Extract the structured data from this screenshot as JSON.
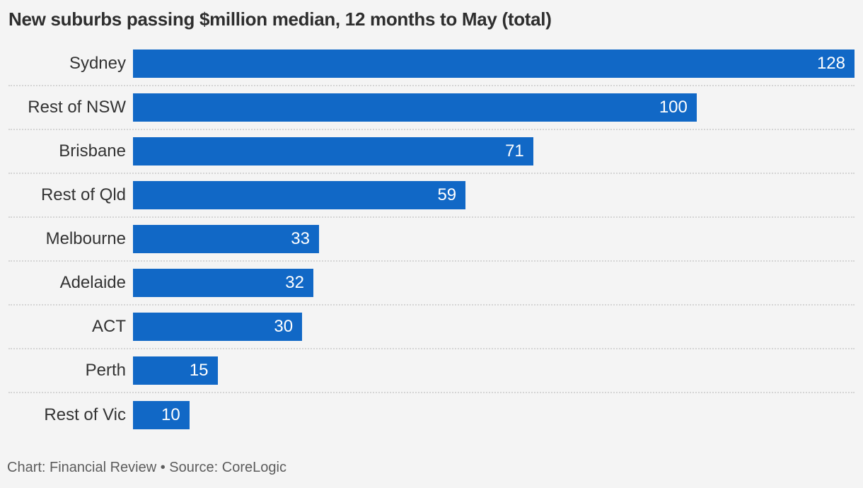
{
  "chart_data": {
    "type": "bar",
    "orientation": "horizontal",
    "title": "New suburbs passing $million median, 12 months to May (total)",
    "categories": [
      "Sydney",
      "Rest of NSW",
      "Brisbane",
      "Rest of Qld",
      "Melbourne",
      "Adelaide",
      "ACT",
      "Perth",
      "Rest of Vic"
    ],
    "values": [
      128,
      100,
      71,
      59,
      33,
      32,
      30,
      15,
      10
    ],
    "xlim": [
      0,
      128
    ],
    "grid": "dotted-row-separators",
    "legend": "none",
    "value_labels_position": "inside-end",
    "footer": "Chart: Financial Review • Source: CoreLogic"
  },
  "colors": {
    "background": "#f4f4f4",
    "bar": "#1168c6",
    "title_text": "#2e2e2e",
    "label_text": "#333333",
    "value_text": "#ffffff",
    "separator": "#d5d5d5",
    "footer_text": "#5c5c5c"
  }
}
